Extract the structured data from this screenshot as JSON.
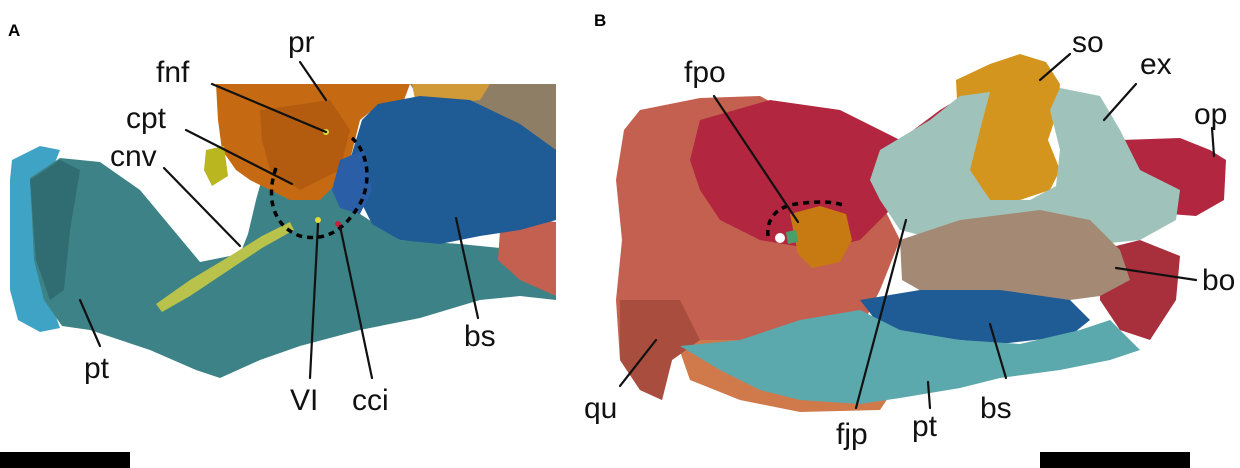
{
  "figure": {
    "panel_a": {
      "letter": "A",
      "labels": {
        "pr": "pr",
        "fnf": "fnf",
        "cpt": "cpt",
        "cnv": "cnv",
        "pt": "pt",
        "vi": "VI",
        "cci": "cci",
        "bs": "bs"
      }
    },
    "panel_b": {
      "letter": "B",
      "labels": {
        "fpo": "fpo",
        "so": "so",
        "ex": "ex",
        "op": "op",
        "bo": "bo",
        "qu": "qu",
        "fjp": "fjp",
        "pt": "pt",
        "bs": "bs"
      }
    },
    "colors": {
      "pterygoid_teal": "#3d8287",
      "pterygoid_blue": "#3fa3c6",
      "prootic_orange": "#c56a12",
      "basisphenoid_blue": "#1f5b95",
      "trigeminal_yellow": "#b9c24a",
      "quadrate_salmon": "#c4604f",
      "opisthotic_crimson": "#b2273f",
      "supraoccipital_gold": "#d4951e",
      "exoccipital_mint": "#9fc3bb",
      "basioccipital_tan": "#a48a74",
      "scale_bar": "#000000"
    }
  }
}
